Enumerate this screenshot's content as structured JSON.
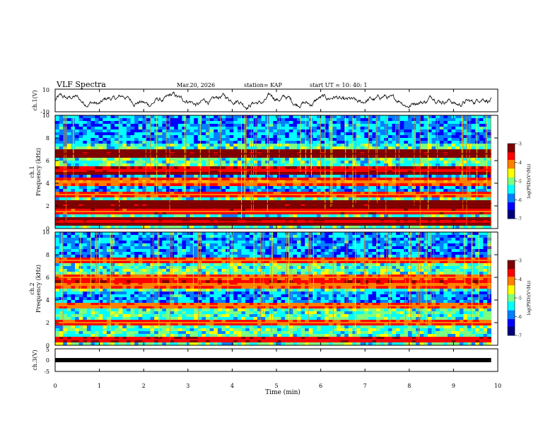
{
  "header": {
    "title": "VLF Spectra",
    "date": "Mar.20, 2026",
    "station": "station= KAP",
    "start": "start  UT =    10: 40: 1"
  },
  "chart_data": [
    {
      "type": "line",
      "panel": "ch1-waveform",
      "ylabel": "ch.1(V)",
      "ylim": [
        -10,
        10
      ],
      "yticks": [
        "10",
        "-10"
      ],
      "xlim": [
        0,
        9.85
      ],
      "color": "#000000",
      "description_values": "noisy trace fluctuating roughly between -5 and 5 V"
    },
    {
      "type": "heatmap",
      "panel": "ch1-spectrogram",
      "ylabel_line1": "ch.1",
      "ylabel_line2": "Frequency (kHz)",
      "ylim": [
        0,
        10
      ],
      "yticks": [
        "0",
        "2",
        "4",
        "6",
        "8",
        "10"
      ],
      "xlim": [
        0,
        9.85
      ],
      "colorbar": {
        "label": "log(PSD)(V²/Hz)",
        "range": [
          -7,
          -3
        ],
        "ticks": [
          "-3",
          "-4",
          "-5",
          "-6",
          "-7"
        ]
      },
      "bands": [
        {
          "f": 6.6,
          "level": -3.3
        },
        {
          "f": 5.2,
          "level": -3.8
        },
        {
          "f": 4.1,
          "level": -4.3
        },
        {
          "f": 3.0,
          "level": -4.0
        },
        {
          "f": 2.2,
          "level": -3.4
        },
        {
          "f": 1.5,
          "level": -3.9
        },
        {
          "f": 0.6,
          "level": -3.6
        }
      ]
    },
    {
      "type": "heatmap",
      "panel": "ch2-spectrogram",
      "ylabel_line1": "ch.2",
      "ylabel_line2": "Frequency (kHz)",
      "ylim": [
        0,
        10
      ],
      "yticks": [
        "0",
        "2",
        "4",
        "6",
        "8",
        "10"
      ],
      "xlim": [
        0,
        9.85
      ],
      "colorbar": {
        "label": "log(PSD)(V²/Hz)",
        "range": [
          -7,
          -3
        ],
        "ticks": [
          "-3",
          "-4",
          "-5",
          "-6",
          "-7"
        ]
      },
      "bands": [
        {
          "f": 7.5,
          "level": -4.0
        },
        {
          "f": 6.0,
          "level": -4.1
        },
        {
          "f": 5.3,
          "level": -4.2
        },
        {
          "f": 3.5,
          "level": -4.2
        },
        {
          "f": 2.0,
          "level": -4.0
        },
        {
          "f": 0.5,
          "level": -3.8
        }
      ]
    },
    {
      "type": "line",
      "panel": "ch3-waveform",
      "ylabel": "ch.3(V)",
      "ylim": [
        -5,
        5
      ],
      "yticks": [
        "5",
        "0",
        "-5"
      ],
      "xlim": [
        0,
        9.85
      ],
      "level": 0,
      "color": "#000000"
    }
  ],
  "xaxis": {
    "label": "Time  (min)",
    "ticks": [
      "0",
      "1",
      "2",
      "3",
      "4",
      "5",
      "6",
      "7",
      "8",
      "9",
      "10"
    ],
    "range": [
      0,
      10
    ]
  },
  "colors": {
    "colormap": [
      "#00007f",
      "#0000ff",
      "#007fff",
      "#00ffff",
      "#7fff7f",
      "#ffff00",
      "#ff7f00",
      "#ff0000",
      "#7f0000"
    ]
  }
}
